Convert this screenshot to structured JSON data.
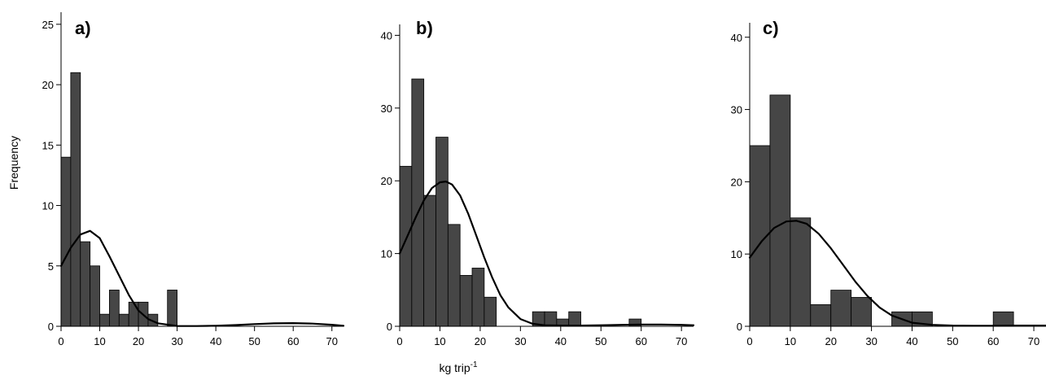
{
  "figure": {
    "ylabel": "Frequency",
    "xlabel_main": "kg trip",
    "xlabel_sup": "-1"
  },
  "colors": {
    "bar_fill": "#464646",
    "bar_stroke": "#000000",
    "curve": "#000000",
    "axis": "#000000"
  },
  "chart_data": [
    {
      "type": "bar",
      "panel_label": "a)",
      "bin_width": 2.5,
      "x_start": 0,
      "values": [
        14,
        21,
        7,
        5,
        1,
        3,
        1,
        2,
        2,
        1,
        0,
        3
      ],
      "curve": {
        "type": "line",
        "x": [
          0,
          2.5,
          5,
          7.5,
          10,
          12.5,
          15,
          17.5,
          20,
          22.5,
          25,
          30,
          35,
          40,
          45,
          50,
          55,
          60,
          65,
          70,
          73
        ],
        "y": [
          5,
          6.5,
          7.6,
          7.9,
          7.3,
          5.8,
          4.2,
          2.6,
          1.3,
          0.6,
          0.25,
          0.03,
          0.02,
          0.05,
          0.1,
          0.18,
          0.24,
          0.26,
          0.22,
          0.13,
          0.04
        ]
      },
      "xlim": [
        0,
        73
      ],
      "ylim": [
        0,
        25
      ],
      "xticks": [
        0,
        10,
        20,
        30,
        40,
        50,
        60,
        70
      ],
      "yticks": [
        0,
        5,
        10,
        15,
        20,
        25
      ],
      "xtick_labels": [
        "0",
        "10",
        "20",
        "30",
        "40",
        "50",
        "60",
        "70"
      ],
      "ytick_labels": [
        "0",
        "5",
        "10",
        "15",
        "20",
        "25"
      ],
      "ytop_display": 26
    },
    {
      "type": "bar",
      "panel_label": "b)",
      "bin_width": 3,
      "x_start": 0,
      "values": [
        22,
        34,
        18,
        26,
        14,
        7,
        8,
        4,
        0,
        0,
        0,
        2,
        2,
        1,
        2,
        0,
        0,
        0,
        0,
        1
      ],
      "curve": {
        "type": "line",
        "x": [
          0,
          2,
          4,
          6,
          8,
          10,
          11.5,
          13,
          15,
          17,
          19,
          21,
          23,
          25,
          27,
          30,
          33,
          36,
          40,
          45,
          50,
          55,
          60,
          65,
          70,
          73
        ],
        "y": [
          10,
          12.5,
          15,
          17.3,
          19,
          19.8,
          19.9,
          19.5,
          18,
          15.5,
          12.5,
          9.5,
          6.7,
          4.3,
          2.6,
          1.0,
          0.35,
          0.15,
          0.1,
          0.1,
          0.15,
          0.2,
          0.25,
          0.25,
          0.2,
          0.15
        ]
      },
      "xlim": [
        0,
        73
      ],
      "ylim": [
        0,
        40
      ],
      "xticks": [
        0,
        10,
        20,
        30,
        40,
        50,
        60,
        70
      ],
      "yticks": [
        0,
        10,
        20,
        30,
        40
      ],
      "xtick_labels": [
        "0",
        "10",
        "20",
        "30",
        "40",
        "50",
        "60",
        "70"
      ],
      "ytick_labels": [
        "0",
        "10",
        "20",
        "30",
        "40"
      ],
      "ytop_display": 41.5
    },
    {
      "type": "bar",
      "panel_label": "c)",
      "bin_width": 5,
      "x_start": 0,
      "values": [
        25,
        32,
        15,
        3,
        5,
        4,
        0,
        2,
        2,
        0,
        0,
        0,
        2
      ],
      "curve": {
        "type": "line",
        "x": [
          0,
          3,
          6,
          9,
          11.5,
          14,
          17,
          20,
          23,
          26,
          29,
          32,
          35,
          40,
          45,
          50,
          55,
          60,
          65,
          70,
          73
        ],
        "y": [
          9.5,
          11.8,
          13.6,
          14.5,
          14.6,
          14.2,
          12.8,
          10.8,
          8.5,
          6.2,
          4.2,
          2.6,
          1.5,
          0.5,
          0.2,
          0.1,
          0.08,
          0.08,
          0.1,
          0.1,
          0.1
        ]
      },
      "xlim": [
        0,
        73
      ],
      "ylim": [
        0,
        40
      ],
      "xticks": [
        0,
        10,
        20,
        30,
        40,
        50,
        60,
        70
      ],
      "yticks": [
        0,
        10,
        20,
        30,
        40
      ],
      "xtick_labels": [
        "0",
        "10",
        "20",
        "30",
        "40",
        "50",
        "60",
        "70"
      ],
      "ytick_labels": [
        "0",
        "10",
        "20",
        "30",
        "40"
      ],
      "ytop_display": 42
    }
  ]
}
